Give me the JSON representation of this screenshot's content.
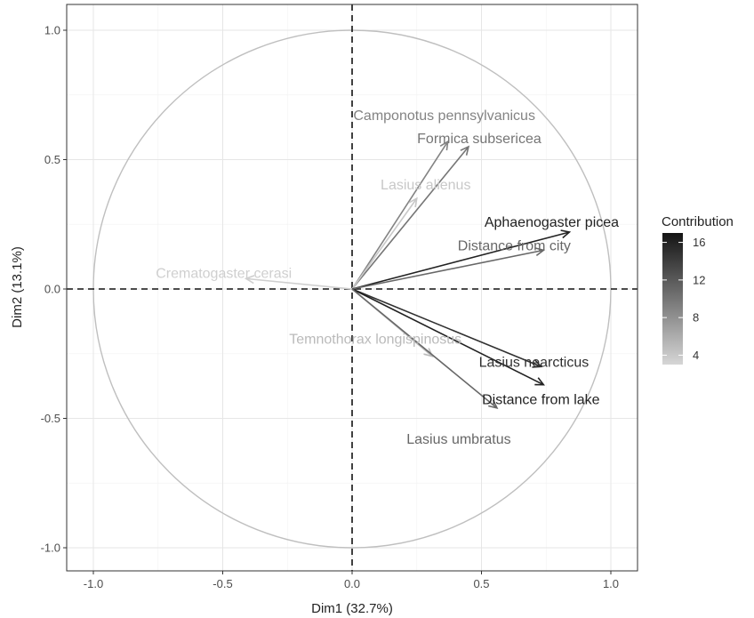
{
  "chart_data": {
    "type": "scatter",
    "subtype": "pca-correlation-circle",
    "xlabel": "Dim1 (32.7%)",
    "ylabel": "Dim2 (13.1%)",
    "xlim": [
      -1.1,
      1.1
    ],
    "ylim": [
      -1.1,
      1.1
    ],
    "x_ticks": [
      -1.0,
      -0.5,
      0.0,
      0.5,
      1.0
    ],
    "y_ticks": [
      -1.0,
      -0.5,
      0.0,
      0.5,
      1.0
    ],
    "x_tick_labels": [
      "-1.0",
      "-0.5",
      "0.0",
      "0.5",
      "1.0"
    ],
    "y_tick_labels": [
      "-1.0",
      "-0.5",
      "0.0",
      "0.5",
      "1.0"
    ],
    "grid": true,
    "unit_circle": true,
    "reference_lines": [
      0,
      0
    ],
    "legend": {
      "title": "Contribution",
      "position": "right",
      "range": [
        3,
        17
      ],
      "ticks": [
        4,
        8,
        12,
        16
      ],
      "tick_labels": [
        "4",
        "8",
        "12",
        "16"
      ],
      "color_low": "#d6d6d6",
      "color_high": "#141414"
    },
    "variables": [
      {
        "name": "Camponotus pennsylvanicus",
        "x": 0.37,
        "y": 0.57,
        "contribution": 9
      },
      {
        "name": "Formica subsericea",
        "x": 0.45,
        "y": 0.55,
        "contribution": 10
      },
      {
        "name": "Lasius alienus",
        "x": 0.25,
        "y": 0.35,
        "contribution": 4
      },
      {
        "name": "Aphaenogaster picea",
        "x": 0.84,
        "y": 0.22,
        "contribution": 16
      },
      {
        "name": "Distance from city",
        "x": 0.74,
        "y": 0.15,
        "contribution": 11
      },
      {
        "name": "Crematogaster cerasi",
        "x": -0.41,
        "y": 0.04,
        "contribution": 3.5
      },
      {
        "name": "Temnothorax longispinosus",
        "x": 0.31,
        "y": -0.26,
        "contribution": 5
      },
      {
        "name": "Lasius nearcticus",
        "x": 0.73,
        "y": -0.3,
        "contribution": 15
      },
      {
        "name": "Distance from lake",
        "x": 0.74,
        "y": -0.37,
        "contribution": 16
      },
      {
        "name": "Lasius umbratus",
        "x": 0.56,
        "y": -0.46,
        "contribution": 11
      }
    ]
  }
}
